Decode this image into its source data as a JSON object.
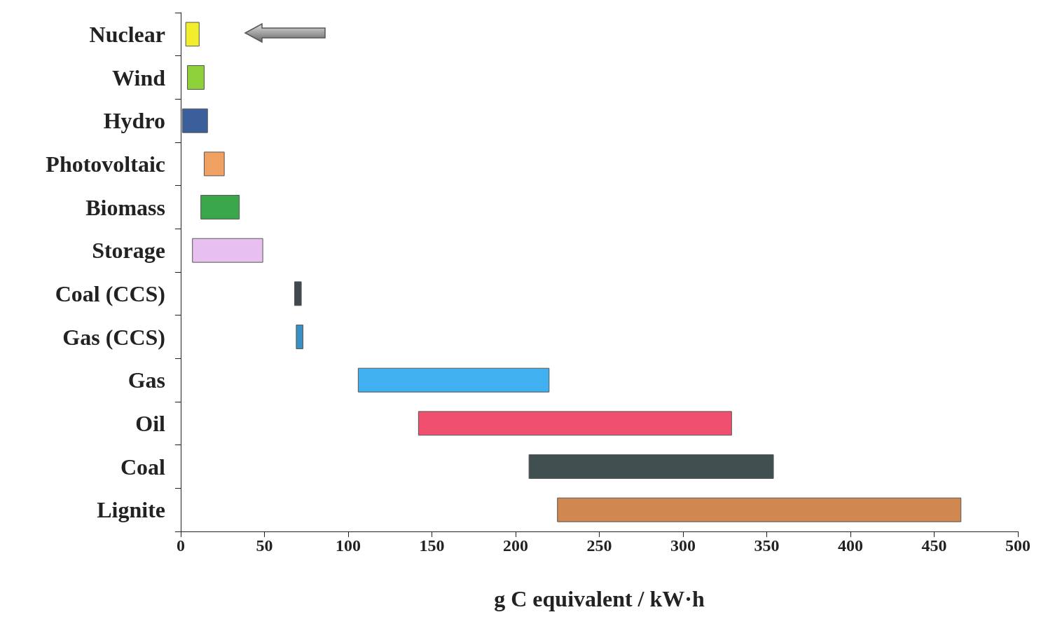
{
  "chart_data": {
    "type": "bar",
    "orientation": "horizontal",
    "xlabel": "g C equivalent / kW·h",
    "categories": [
      "Nuclear",
      "Wind",
      "Hydro",
      "Photovoltaic",
      "Biomass",
      "Storage",
      "Coal (CCS)",
      "Gas (CCS)",
      "Gas",
      "Oil",
      "Coal",
      "Lignite"
    ],
    "base": [
      3,
      4,
      1,
      14,
      12,
      7,
      68,
      69,
      106,
      142,
      208,
      225
    ],
    "values": [
      8,
      10,
      15,
      12,
      23,
      42,
      4,
      4,
      114,
      187,
      146,
      241
    ],
    "colors": [
      "#f2ee2e",
      "#8fd13a",
      "#3a5f9a",
      "#f0a060",
      "#3aa84a",
      "#e8c0f0",
      "#404850",
      "#3a90c0",
      "#40b0f0",
      "#f05070",
      "#405050",
      "#d08850"
    ],
    "xlim": [
      0,
      500
    ],
    "xticks": [
      0,
      50,
      100,
      150,
      200,
      250,
      300,
      350,
      400,
      450,
      500
    ],
    "grid": false
  }
}
